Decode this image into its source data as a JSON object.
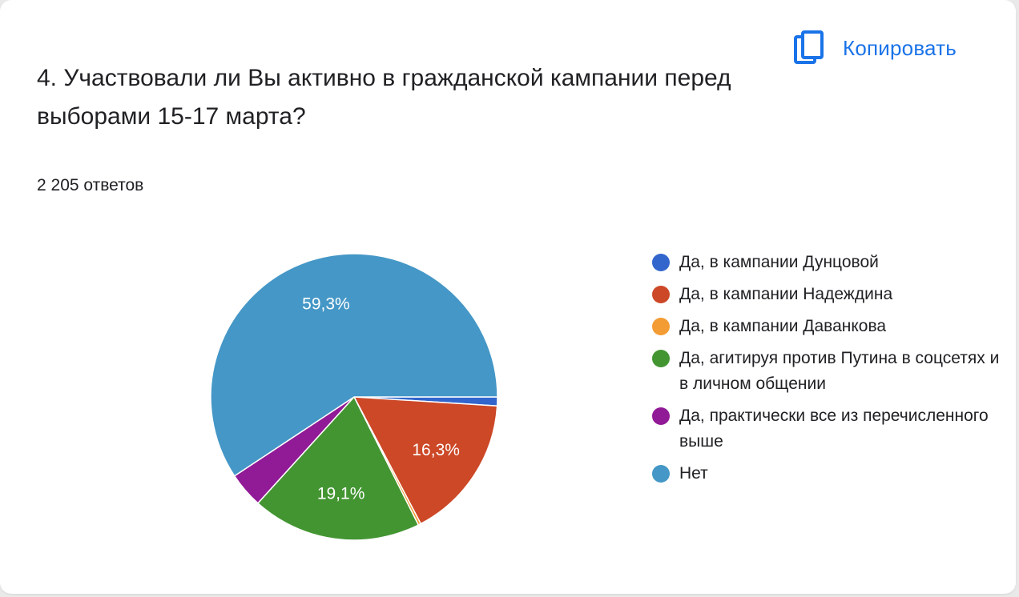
{
  "header": {
    "copy_label": "Копировать",
    "copy_icon": "copy-icon"
  },
  "question": {
    "title": "4. Участвовали ли Вы активно в гражданской кампании перед выборами 15-17 марта?",
    "response_count": "2 205 ответов"
  },
  "chart_data": {
    "type": "pie",
    "title": "",
    "slices": [
      {
        "label": "Да, в кампании Дунцовой",
        "value": 1.0,
        "color": "#3366cc",
        "data_label": ""
      },
      {
        "label": "Да, в кампании Надеждина",
        "value": 16.3,
        "color": "#cc4827",
        "data_label": "16,3%"
      },
      {
        "label": "Да, в кампании Даванкова",
        "value": 0.3,
        "color": "#f39c33",
        "data_label": ""
      },
      {
        "label": "Да, агитируя против Путина в соцсетях и в личном общении",
        "value": 19.1,
        "color": "#439532",
        "data_label": "19,1%"
      },
      {
        "label": "Да, практически все из перечисленного выше",
        "value": 4.0,
        "color": "#911a96",
        "data_label": ""
      },
      {
        "label": "Нет",
        "value": 59.3,
        "color": "#4497c6",
        "data_label": "59,3%"
      }
    ],
    "start_angle": "3 o'clock",
    "direction": "clockwise",
    "legend_position": "right"
  }
}
